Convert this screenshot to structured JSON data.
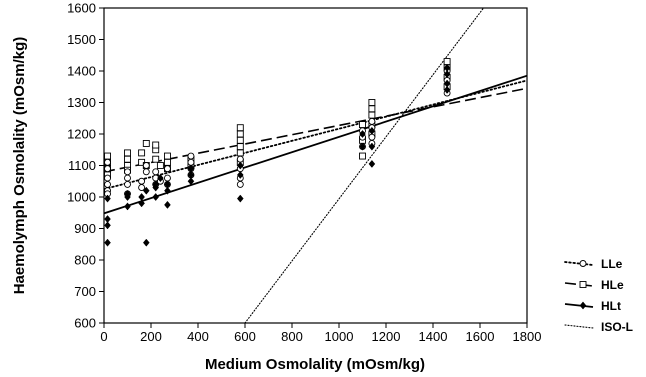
{
  "chart_data": {
    "type": "scatter",
    "xlabel": "Medium Osmolality (mOsm/kg)",
    "ylabel": "Haemolymph Osmolality (mOsm/kg)",
    "xlim": [
      0,
      1800
    ],
    "ylim": [
      600,
      1600
    ],
    "x_ticks": [
      "0",
      "200",
      "400",
      "600",
      "800",
      "1000",
      "1200",
      "1400",
      "1600",
      "1800"
    ],
    "y_ticks": [
      "600",
      "700",
      "800",
      "900",
      "1000",
      "1100",
      "1200",
      "1300",
      "1400",
      "1500",
      "1600"
    ],
    "grid": false,
    "legend_position": "right, outside plot",
    "series": [
      {
        "name": "LLe",
        "marker": "open-circle",
        "line_style": "dotted",
        "line": {
          "x": [
            0,
            1800
          ],
          "y": [
            1025,
            1370
          ]
        },
        "points": [
          [
            15,
            1020
          ],
          [
            15,
            1040
          ],
          [
            15,
            1060
          ],
          [
            15,
            1090
          ],
          [
            15,
            1110
          ],
          [
            15,
            1010
          ],
          [
            100,
            1010
          ],
          [
            100,
            1040
          ],
          [
            100,
            1060
          ],
          [
            100,
            1080
          ],
          [
            160,
            1030
          ],
          [
            160,
            1050
          ],
          [
            180,
            1080
          ],
          [
            180,
            1100
          ],
          [
            220,
            1040
          ],
          [
            220,
            1060
          ],
          [
            220,
            1080
          ],
          [
            240,
            1050
          ],
          [
            270,
            1040
          ],
          [
            270,
            1060
          ],
          [
            270,
            1090
          ],
          [
            370,
            1070
          ],
          [
            370,
            1090
          ],
          [
            370,
            1110
          ],
          [
            370,
            1130
          ],
          [
            580,
            1040
          ],
          [
            580,
            1060
          ],
          [
            580,
            1090
          ],
          [
            580,
            1120
          ],
          [
            1100,
            1160
          ],
          [
            1100,
            1190
          ],
          [
            1100,
            1210
          ],
          [
            1140,
            1170
          ],
          [
            1140,
            1190
          ],
          [
            1140,
            1220
          ],
          [
            1140,
            1240
          ],
          [
            1460,
            1330
          ],
          [
            1460,
            1370
          ],
          [
            1460,
            1400
          ]
        ]
      },
      {
        "name": "HLe",
        "marker": "open-square",
        "line_style": "dashed",
        "line": {
          "x": [
            0,
            1800
          ],
          "y": [
            1080,
            1345
          ]
        },
        "points": [
          [
            15,
            1090
          ],
          [
            15,
            1110
          ],
          [
            15,
            1130
          ],
          [
            15,
            1070
          ],
          [
            100,
            1100
          ],
          [
            100,
            1120
          ],
          [
            100,
            1140
          ],
          [
            100,
            1085
          ],
          [
            160,
            1110
          ],
          [
            160,
            1140
          ],
          [
            180,
            1170
          ],
          [
            180,
            1100
          ],
          [
            220,
            1120
          ],
          [
            220,
            1150
          ],
          [
            220,
            1165
          ],
          [
            240,
            1100
          ],
          [
            270,
            1090
          ],
          [
            270,
            1110
          ],
          [
            270,
            1130
          ],
          [
            370,
            1100
          ],
          [
            370,
            1120
          ],
          [
            580,
            1110
          ],
          [
            580,
            1140
          ],
          [
            580,
            1160
          ],
          [
            580,
            1180
          ],
          [
            580,
            1200
          ],
          [
            580,
            1220
          ],
          [
            1100,
            1130
          ],
          [
            1100,
            1180
          ],
          [
            1100,
            1230
          ],
          [
            1140,
            1200
          ],
          [
            1140,
            1230
          ],
          [
            1140,
            1260
          ],
          [
            1140,
            1280
          ],
          [
            1140,
            1300
          ],
          [
            1460,
            1350
          ],
          [
            1460,
            1380
          ],
          [
            1460,
            1410
          ],
          [
            1460,
            1430
          ]
        ]
      },
      {
        "name": "HLt",
        "marker": "filled-diamond",
        "line_style": "solid",
        "line": {
          "x": [
            0,
            1800
          ],
          "y": [
            948,
            1385
          ]
        },
        "points": [
          [
            15,
            855
          ],
          [
            15,
            910
          ],
          [
            15,
            930
          ],
          [
            15,
            995
          ],
          [
            100,
            970
          ],
          [
            100,
            1000
          ],
          [
            100,
            1010
          ],
          [
            160,
            980
          ],
          [
            160,
            1000
          ],
          [
            180,
            1020
          ],
          [
            180,
            855
          ],
          [
            220,
            1000
          ],
          [
            220,
            1030
          ],
          [
            220,
            1040
          ],
          [
            240,
            1060
          ],
          [
            270,
            975
          ],
          [
            270,
            1020
          ],
          [
            270,
            1040
          ],
          [
            370,
            1050
          ],
          [
            370,
            1070
          ],
          [
            370,
            1090
          ],
          [
            580,
            995
          ],
          [
            580,
            1070
          ],
          [
            580,
            1100
          ],
          [
            1100,
            1160
          ],
          [
            1100,
            1200
          ],
          [
            1140,
            1105
          ],
          [
            1140,
            1160
          ],
          [
            1140,
            1210
          ],
          [
            1460,
            1340
          ],
          [
            1460,
            1360
          ],
          [
            1460,
            1390
          ],
          [
            1460,
            1410
          ]
        ]
      },
      {
        "name": "ISO-L",
        "marker": "none",
        "line_style": "dotted-fine",
        "line": {
          "x": [
            600,
            1615
          ],
          "y": [
            600,
            1600
          ]
        },
        "points": []
      }
    ]
  },
  "colors": {
    "ink": "#000000",
    "background": "#ffffff",
    "open_marker_fill": "#ffffff"
  }
}
